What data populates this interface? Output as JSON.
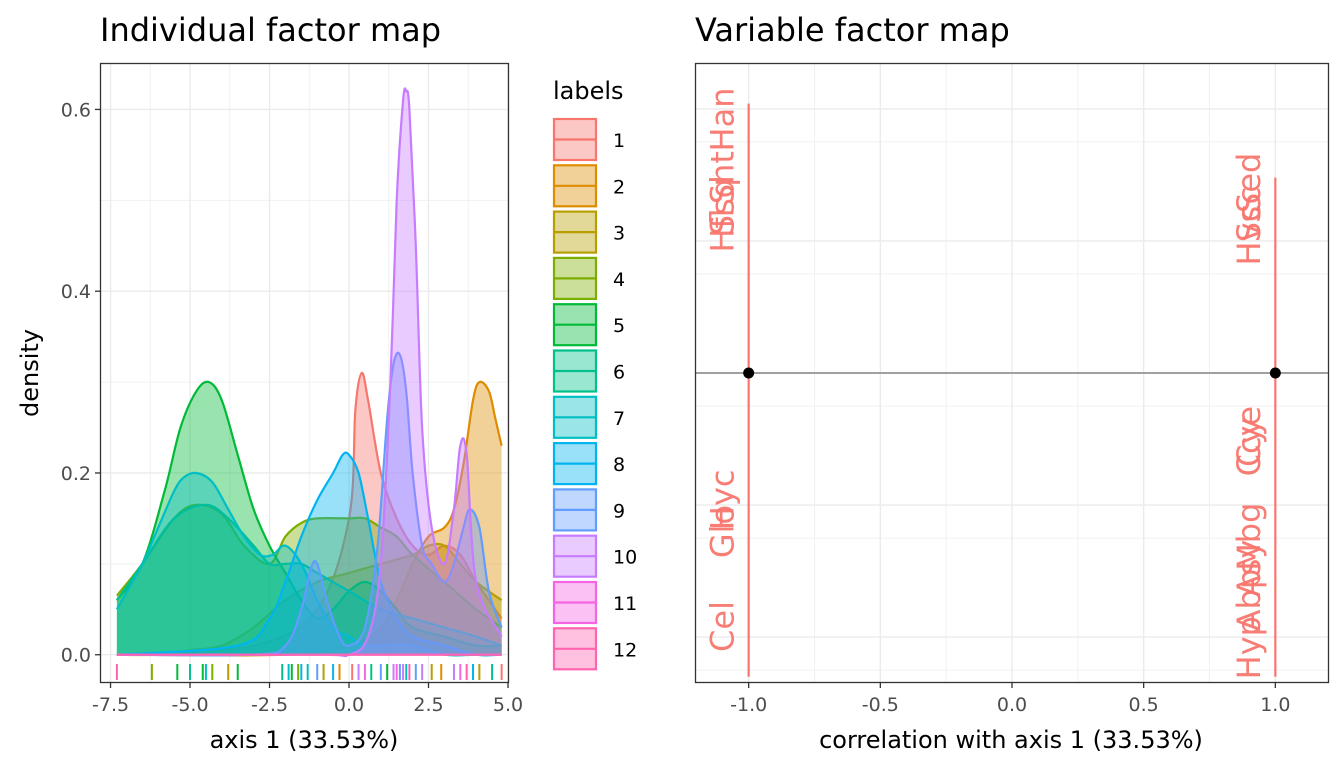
{
  "chart_data": [
    {
      "type": "area",
      "title": "Individual factor map",
      "xlabel": "axis 1 (33.53%)",
      "ylabel": "density",
      "xlim": [
        -7.8,
        5.0
      ],
      "ylim": [
        -0.03,
        0.65
      ],
      "xticks": [
        -7.5,
        -5.0,
        -2.5,
        0.0,
        2.5,
        5.0
      ],
      "xtick_labels": [
        "-7.5",
        "-5.0",
        "-2.5",
        "0.0",
        "2.5",
        "5.0"
      ],
      "yticks": [
        0.0,
        0.2,
        0.4,
        0.6
      ],
      "ytick_labels": [
        "0.0",
        "0.2",
        "0.4",
        "0.6"
      ],
      "grid": true,
      "legend": {
        "title": "labels",
        "placement": "right",
        "entries": [
          "1",
          "2",
          "3",
          "4",
          "5",
          "6",
          "7",
          "8",
          "9",
          "10",
          "11",
          "12"
        ]
      },
      "series": [
        {
          "label": "1",
          "color": "#F8766D",
          "x": [
            -7.3,
            -3,
            -1,
            0,
            0.2,
            0.4,
            0.6,
            1,
            1.5,
            2,
            2.5,
            3,
            3.5,
            4,
            4.8
          ],
          "y": [
            0,
            0.01,
            0.05,
            0.15,
            0.27,
            0.31,
            0.28,
            0.2,
            0.15,
            0.12,
            0.11,
            0.12,
            0.11,
            0.08,
            0.04
          ]
        },
        {
          "label": "2",
          "color": "#DE8C00",
          "x": [
            -7.3,
            -2,
            0,
            1,
            1.5,
            2,
            2.5,
            3,
            3.3,
            3.6,
            3.9,
            4.1,
            4.4,
            4.6,
            4.8
          ],
          "y": [
            0,
            0,
            0.01,
            0.03,
            0.06,
            0.1,
            0.13,
            0.14,
            0.16,
            0.21,
            0.28,
            0.3,
            0.29,
            0.26,
            0.23
          ]
        },
        {
          "label": "3",
          "color": "#B79F00",
          "x": [
            -7.3,
            -6,
            -5,
            -4,
            -3,
            -2,
            -1,
            0,
            1,
            2,
            2.5,
            3,
            3.5,
            4,
            4.8
          ],
          "y": [
            0,
            0,
            0.005,
            0.01,
            0.03,
            0.06,
            0.08,
            0.09,
            0.1,
            0.11,
            0.12,
            0.12,
            0.1,
            0.08,
            0.06
          ]
        },
        {
          "label": "4",
          "color": "#7CAE00",
          "x": [
            -7.3,
            -6.5,
            -5.5,
            -4.8,
            -4,
            -3.3,
            -2.5,
            -2,
            -1.5,
            -1,
            0,
            0.5,
            1,
            1.5,
            2,
            3,
            4,
            4.8
          ],
          "y": [
            0.065,
            0.1,
            0.15,
            0.165,
            0.155,
            0.12,
            0.1,
            0.13,
            0.145,
            0.15,
            0.15,
            0.15,
            0.14,
            0.13,
            0.11,
            0.08,
            0.05,
            0.03
          ]
        },
        {
          "label": "5",
          "color": "#00BA38",
          "x": [
            -7.3,
            -6.5,
            -5.8,
            -5.3,
            -4.8,
            -4.4,
            -4,
            -3.5,
            -3,
            -2.5,
            -2,
            -1.5,
            -1,
            -0.5,
            0,
            0.5,
            1,
            1.5,
            2,
            3,
            4,
            4.8
          ],
          "y": [
            0.06,
            0.1,
            0.18,
            0.25,
            0.29,
            0.3,
            0.28,
            0.22,
            0.16,
            0.12,
            0.09,
            0.06,
            0.04,
            0.05,
            0.07,
            0.08,
            0.07,
            0.05,
            0.03,
            0.02,
            0.01,
            0.01
          ]
        },
        {
          "label": "6",
          "color": "#00C08B",
          "x": [
            -7.3,
            -6.5,
            -5.5,
            -4.5,
            -3.8,
            -3,
            -2.5,
            -2,
            -1.5,
            -1,
            0,
            1,
            2,
            3,
            4,
            4.8
          ],
          "y": [
            0.06,
            0.1,
            0.15,
            0.165,
            0.15,
            0.12,
            0.1,
            0.1,
            0.1,
            0.09,
            0.07,
            0.05,
            0.04,
            0.03,
            0.02,
            0.01
          ]
        },
        {
          "label": "7",
          "color": "#00BFC4",
          "x": [
            -7.3,
            -6.5,
            -6,
            -5.5,
            -5.2,
            -4.8,
            -4.3,
            -3.8,
            -3.3,
            -2.8,
            -2.4,
            -2,
            -1.5,
            -1,
            -0.5,
            0,
            0.5,
            1,
            2,
            3,
            4,
            4.8
          ],
          "y": [
            0.05,
            0.1,
            0.14,
            0.18,
            0.195,
            0.2,
            0.19,
            0.16,
            0.13,
            0.11,
            0.11,
            0.12,
            0.1,
            0.06,
            0.03,
            0.02,
            0.01,
            0.01,
            0.01,
            0,
            0,
            0
          ]
        },
        {
          "label": "8",
          "color": "#00B4F0",
          "x": [
            -7.3,
            -3.5,
            -2.5,
            -2,
            -1.5,
            -1,
            -0.5,
            -0.2,
            0,
            0.3,
            0.6,
            1,
            1.5,
            2,
            3,
            4,
            4.8
          ],
          "y": [
            0,
            0.01,
            0.04,
            0.08,
            0.13,
            0.17,
            0.2,
            0.22,
            0.22,
            0.2,
            0.15,
            0.08,
            0.04,
            0.02,
            0.01,
            0,
            0
          ]
        },
        {
          "label": "9",
          "color": "#619CFF",
          "x": [
            -7.3,
            -3,
            -2,
            -1.5,
            -1.2,
            -1,
            -0.7,
            -0.3,
            0,
            0.5,
            0.9,
            1.2,
            1.4,
            1.6,
            1.8,
            2,
            2.3,
            2.6,
            3,
            3.3,
            3.6,
            3.8,
            4.1,
            4.4,
            4.8
          ],
          "y": [
            0,
            0,
            0.01,
            0.05,
            0.095,
            0.1,
            0.06,
            0.02,
            0.01,
            0.03,
            0.12,
            0.26,
            0.32,
            0.33,
            0.29,
            0.2,
            0.12,
            0.1,
            0.08,
            0.1,
            0.14,
            0.16,
            0.14,
            0.07,
            0.03
          ]
        },
        {
          "label": "10",
          "color": "#C77CFF",
          "x": [
            -7.3,
            -1,
            0,
            0.6,
            1,
            1.3,
            1.5,
            1.7,
            1.8,
            1.9,
            2.1,
            2.3,
            2.6,
            3,
            3.3,
            3.5,
            3.7,
            4,
            4.8
          ],
          "y": [
            0,
            0,
            0,
            0.02,
            0.1,
            0.3,
            0.5,
            0.61,
            0.62,
            0.6,
            0.45,
            0.25,
            0.14,
            0.1,
            0.16,
            0.23,
            0.22,
            0.08,
            0.02
          ]
        },
        {
          "label": "11",
          "color": "#F564E3",
          "x": [
            -7.3,
            4.8
          ],
          "y": [
            0,
            0
          ]
        },
        {
          "label": "12",
          "color": "#FF64B0",
          "x": [
            -7.3,
            4.8
          ],
          "y": [
            0,
            0
          ]
        }
      ],
      "rug": {
        "x": [
          -7.3,
          -6.2,
          -5.4,
          -5.0,
          -4.6,
          -4.5,
          -4.3,
          -3.8,
          -3.5,
          -2.1,
          -1.9,
          -1.8,
          -1.6,
          -1.5,
          -1.3,
          -1.0,
          -0.8,
          -0.5,
          -0.3,
          0.1,
          0.3,
          0.5,
          0.7,
          1.0,
          1.2,
          1.4,
          1.5,
          1.6,
          1.7,
          1.8,
          1.9,
          2.1,
          2.3,
          2.6,
          2.9,
          3.3,
          3.5,
          3.7,
          3.9,
          4.1,
          4.5,
          4.8
        ],
        "labels": [
          "12",
          "4",
          "5",
          "6",
          "5",
          "7",
          "4",
          "3",
          "5",
          "6",
          "7",
          "5",
          "4",
          "8",
          "7",
          "9",
          "3",
          "8",
          "2",
          "1",
          "10",
          "11",
          "6",
          "9",
          "5",
          "10",
          "11",
          "9",
          "10",
          "7",
          "12",
          "9",
          "10",
          "3",
          "2",
          "10",
          "11",
          "12",
          "8",
          "3",
          "6",
          "1"
        ]
      }
    },
    {
      "type": "scatter",
      "title": "Variable factor map",
      "xlabel": "correlation with axis 1 (33.53%)",
      "ylabel": "",
      "xlim": [
        -1.2,
        1.2
      ],
      "ylim": [
        -1.17,
        1.17
      ],
      "xticks": [
        -1.0,
        -0.5,
        0.0,
        0.5,
        1.0
      ],
      "xtick_labels": [
        "-1.0",
        "-0.5",
        "0.0",
        "0.5",
        "1.0"
      ],
      "grid": true,
      "hline": 0,
      "text_color": "#F8766D",
      "points": [
        {
          "x": -1.0,
          "y": 0
        },
        {
          "x": 1.0,
          "y": 0
        }
      ],
      "segments": [
        {
          "x": -1.0,
          "y0": 0.02,
          "y1": 1.02
        },
        {
          "x": -1.0,
          "y0": -1.15,
          "y1": -0.02
        },
        {
          "x": 1.0,
          "y0": 0.02,
          "y1": 0.74
        },
        {
          "x": 1.0,
          "y0": -1.15,
          "y1": -0.02
        }
      ],
      "labels": [
        {
          "text": "Han",
          "x": -1.1,
          "y": 0.96
        },
        {
          "text": "Sht",
          "x": -1.1,
          "y": 0.74
        },
        {
          "text": "Ssq",
          "x": -1.1,
          "y": 0.63
        },
        {
          "text": "Hfl",
          "x": -1.1,
          "y": 0.54
        },
        {
          "text": "Cel",
          "x": -1.1,
          "y": -0.96
        },
        {
          "text": "Glo",
          "x": -1.1,
          "y": -0.6
        },
        {
          "text": "Hyc",
          "x": -1.1,
          "y": -0.48
        },
        {
          "text": "Sed",
          "x": 0.9,
          "y": 0.72
        },
        {
          "text": "Scc",
          "x": 0.9,
          "y": 0.6
        },
        {
          "text": "Hvs",
          "x": 0.9,
          "y": 0.52
        },
        {
          "text": "Cye",
          "x": 0.9,
          "y": -0.24
        },
        {
          "text": "Ccy",
          "x": 0.9,
          "y": -0.28
        },
        {
          "text": "Mbg",
          "x": 0.9,
          "y": -0.62
        },
        {
          "text": "Asy",
          "x": 0.9,
          "y": -0.74
        },
        {
          "text": "Hyp",
          "x": 0.9,
          "y": -1.04
        },
        {
          "text": "Abp",
          "x": 0.9,
          "y": -0.86
        }
      ]
    }
  ]
}
